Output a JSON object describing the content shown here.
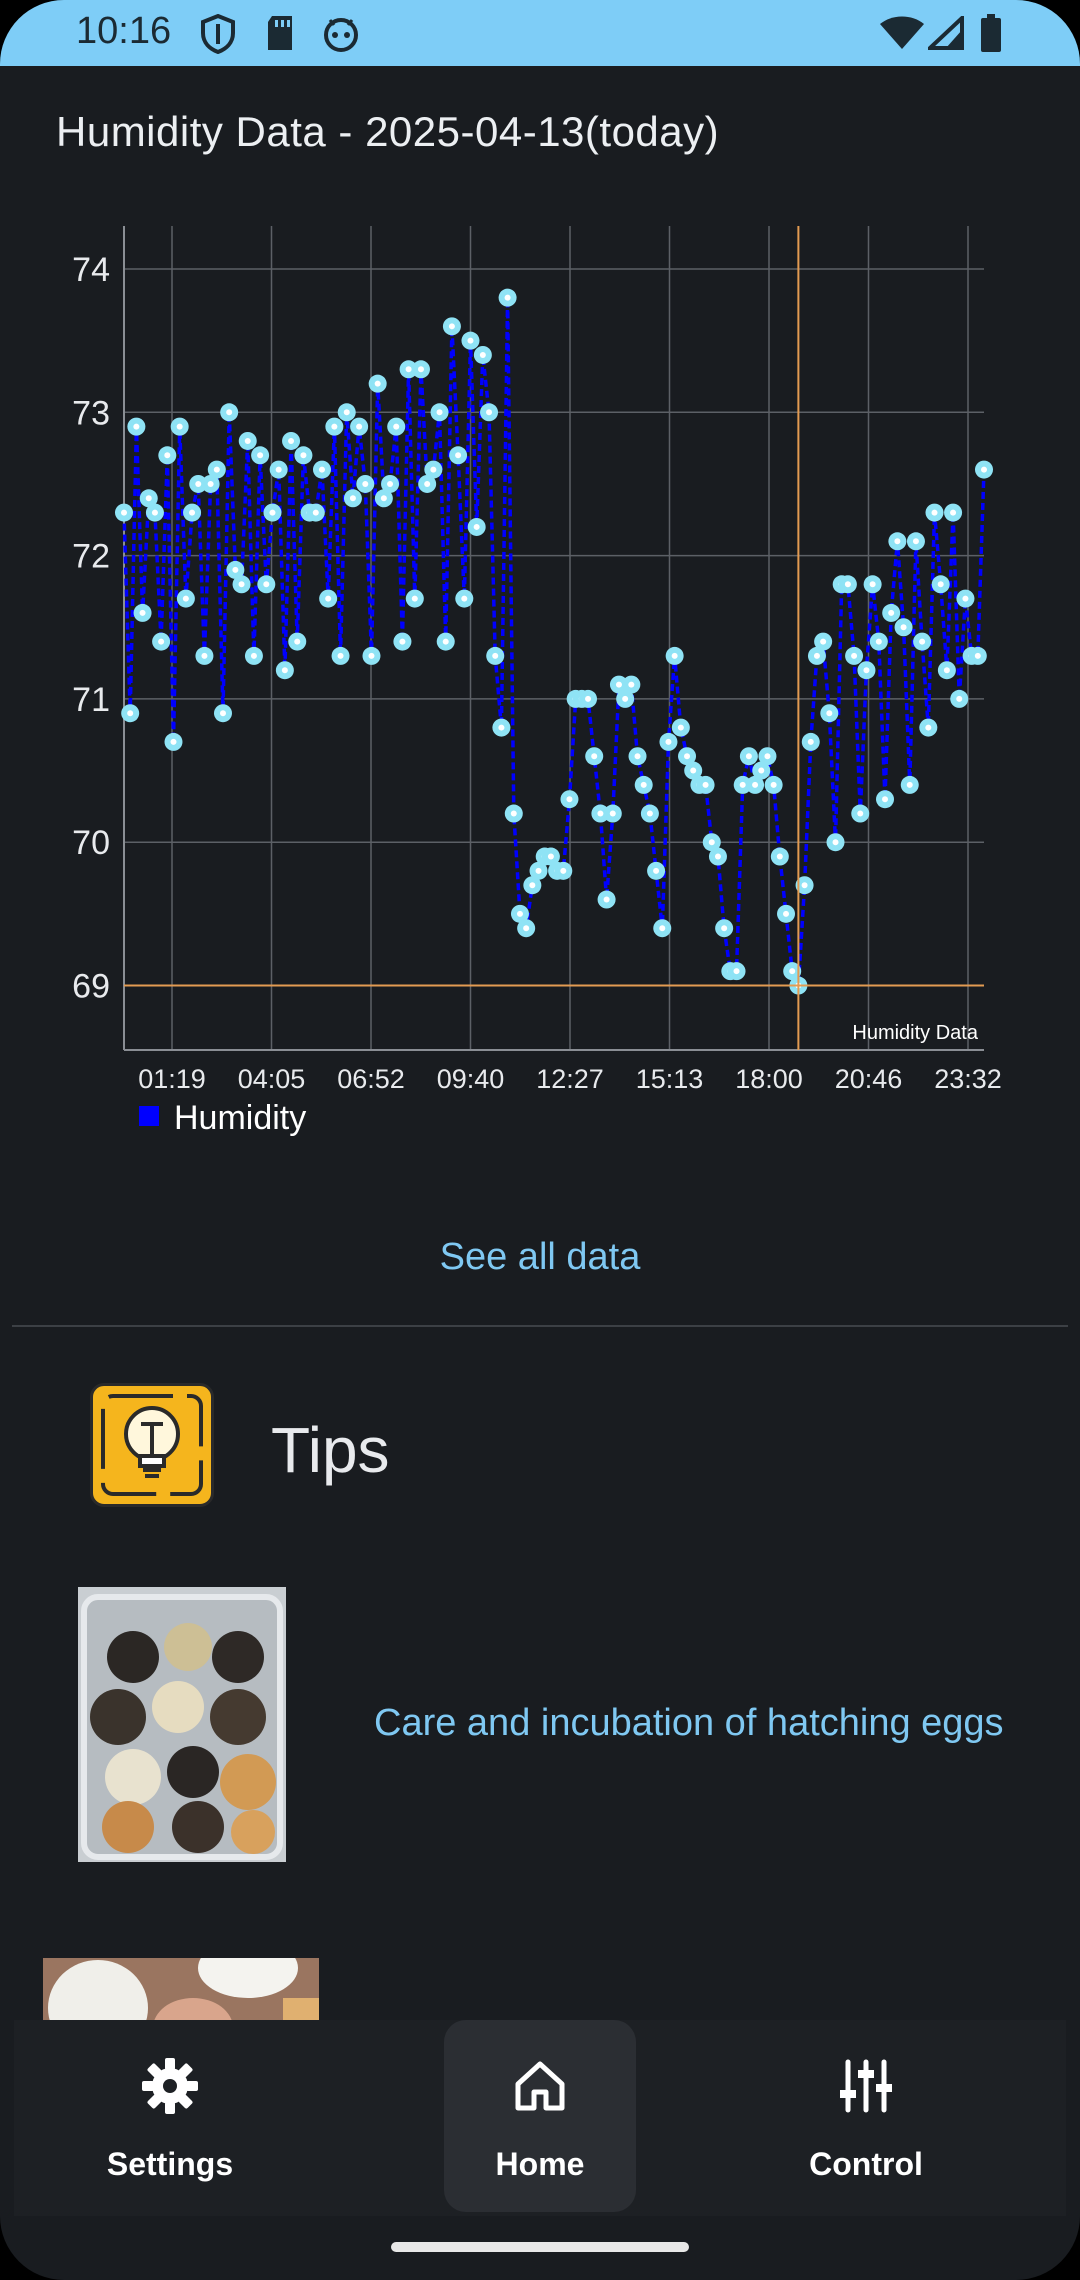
{
  "status_bar": {
    "time": "10:16",
    "icons": [
      "shield-icon",
      "sd-card-icon",
      "android-face-icon",
      "wifi-icon",
      "signal-icon",
      "battery-icon"
    ]
  },
  "page": {
    "title": "Humidity Data - 2025-04-13(today)"
  },
  "chart_data": {
    "type": "line",
    "title": "",
    "xlabel": "",
    "ylabel": "",
    "description_label": "Humidity Data",
    "ylim": [
      68.55,
      74.3
    ],
    "y_ticks": [
      69,
      70,
      71,
      72,
      73,
      74
    ],
    "x_ticks": [
      "01:19",
      "04:05",
      "06:52",
      "09:40",
      "12:27",
      "15:13",
      "18:00",
      "20:46",
      "23:32"
    ],
    "grid": true,
    "legend": "bottom-left",
    "series": [
      {
        "name": "Humidity",
        "color": "#0000ff",
        "marker_color": "#8fe3f5",
        "values": [
          72.3,
          70.9,
          72.9,
          71.6,
          72.4,
          72.3,
          71.4,
          72.7,
          70.7,
          72.9,
          71.7,
          72.3,
          72.5,
          71.3,
          72.5,
          72.6,
          70.9,
          73.0,
          71.9,
          71.8,
          72.8,
          71.3,
          72.7,
          71.8,
          72.3,
          72.6,
          71.2,
          72.8,
          71.4,
          72.7,
          72.3,
          72.3,
          72.6,
          71.7,
          72.9,
          71.3,
          73.0,
          72.4,
          72.9,
          72.5,
          71.3,
          73.2,
          72.4,
          72.5,
          72.9,
          71.4,
          73.3,
          71.7,
          73.3,
          72.5,
          72.6,
          73.0,
          71.4,
          73.6,
          72.7,
          71.7,
          73.5,
          72.2,
          73.4,
          73.0,
          71.3,
          70.8,
          73.8,
          70.2,
          69.5,
          69.4,
          69.7,
          69.8,
          69.9,
          69.9,
          69.8,
          69.8,
          70.3,
          71.0,
          71.0,
          71.0,
          70.6,
          70.2,
          69.6,
          70.2,
          71.1,
          71.0,
          71.1,
          70.6,
          70.4,
          70.2,
          69.8,
          69.4,
          70.7,
          71.3,
          70.8,
          70.6,
          70.5,
          70.4,
          70.4,
          70.0,
          69.9,
          69.4,
          69.1,
          69.1,
          70.4,
          70.6,
          70.4,
          70.5,
          70.6,
          70.4,
          69.9,
          69.5,
          69.1,
          69.0,
          69.7,
          70.7,
          71.3,
          71.4,
          70.9,
          70.0,
          71.8,
          71.8,
          71.3,
          70.2,
          71.2,
          71.8,
          71.4,
          70.3,
          71.6,
          72.1,
          71.5,
          70.4,
          72.1,
          71.4,
          70.8,
          72.3,
          71.8,
          71.2,
          72.3,
          71.0,
          71.7,
          71.3,
          71.3,
          72.6
        ]
      }
    ],
    "cursor": {
      "x_index": 109,
      "y": 69.0,
      "color": "#e39b52"
    }
  },
  "actions": {
    "see_all": "See all data"
  },
  "tips": {
    "title": "Tips",
    "articles": [
      {
        "title": "Care and incubation of hatching eggs"
      }
    ]
  },
  "bottom_nav": {
    "items": [
      {
        "label": "Settings",
        "icon": "gear-icon"
      },
      {
        "label": "Home",
        "icon": "home-icon",
        "selected": true
      },
      {
        "label": "Control",
        "icon": "sliders-icon"
      }
    ]
  },
  "colors": {
    "status_bar": "#7ecdf7",
    "background": "#191c20",
    "accent": "#7fc8f2",
    "tips_icon": "#f5b51d"
  }
}
